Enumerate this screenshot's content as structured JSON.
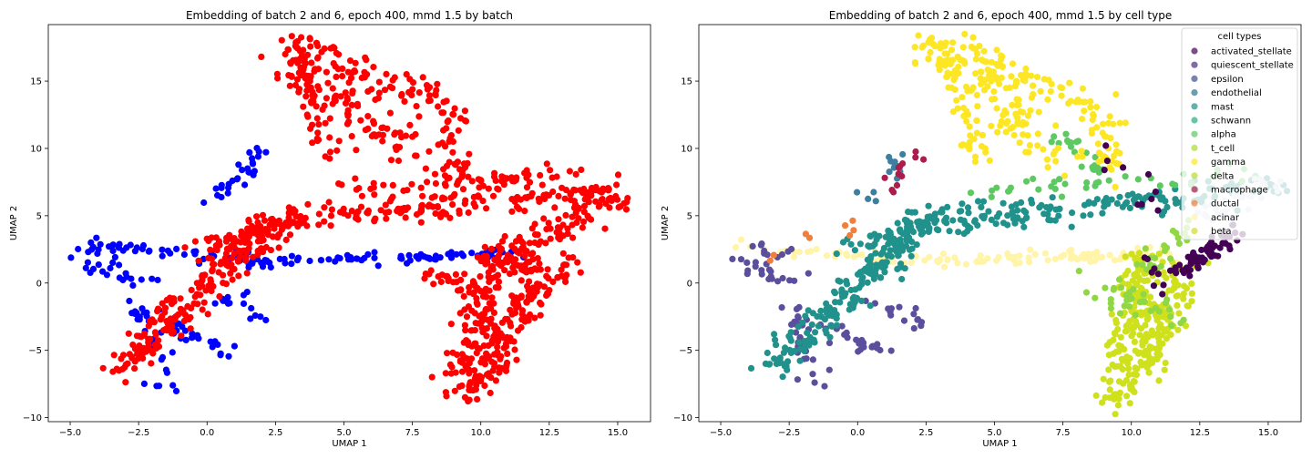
{
  "chart_data": [
    {
      "type": "scatter",
      "title": "Embedding of batch 2 and 6, epoch 400, mmd 1.5 by batch",
      "xlabel": "UMAP 1",
      "ylabel": "UMAP 2",
      "xlim": [
        -5.8,
        16.2
      ],
      "ylim": [
        -10.3,
        19.2
      ],
      "xticks": [
        "−5.0",
        "−2.5",
        "0.0",
        "2.5",
        "5.0",
        "7.5",
        "10.0",
        "12.5",
        "15.0"
      ],
      "xtick_values": [
        -5,
        -2.5,
        0,
        2.5,
        5,
        7.5,
        10,
        12.5,
        15
      ],
      "yticks": [
        "−10",
        "−5",
        "0",
        "5",
        "10",
        "15"
      ],
      "ytick_values": [
        -10,
        -5,
        0,
        5,
        10,
        15
      ],
      "grid": false,
      "series": [
        {
          "color": "#0000ff",
          "regions": [
            {
              "shape": "line",
              "from": [
                -4.5,
                2.8
              ],
              "to": [
                2.2,
                1.6
              ],
              "count": 60,
              "spread": 0.45
            },
            {
              "shape": "line",
              "from": [
                2.2,
                1.6
              ],
              "to": [
                11.5,
                2.2
              ],
              "count": 70,
              "spread": 0.35
            },
            {
              "shape": "line",
              "from": [
                -4.5,
                1.5
              ],
              "to": [
                -2.2,
                0.2
              ],
              "count": 20,
              "spread": 0.6
            },
            {
              "shape": "line",
              "from": [
                -2.5,
                -1.5
              ],
              "to": [
                -1.5,
                -7.8
              ],
              "count": 30,
              "spread": 0.5
            },
            {
              "shape": "line",
              "from": [
                -1.5,
                -3.0
              ],
              "to": [
                0.8,
                -5.2
              ],
              "count": 25,
              "spread": 0.5
            },
            {
              "shape": "line",
              "from": [
                0.2,
                6.0
              ],
              "to": [
                2.2,
                10.0
              ],
              "count": 28,
              "spread": 0.5
            },
            {
              "shape": "line",
              "from": [
                0.5,
                -1.0
              ],
              "to": [
                2.2,
                -2.8
              ],
              "count": 15,
              "spread": 0.5
            }
          ]
        },
        {
          "color": "#ff0000",
          "regions": [
            {
              "shape": "line",
              "from": [
                -3.3,
                -6.5
              ],
              "to": [
                2.5,
                4.5
              ],
              "count": 200,
              "spread": 0.7
            },
            {
              "shape": "line",
              "from": [
                0.0,
                2.5
              ],
              "to": [
                2.8,
                4.8
              ],
              "count": 50,
              "spread": 0.6
            },
            {
              "shape": "line",
              "from": [
                2.5,
                4.6
              ],
              "to": [
                15.0,
                7.0
              ],
              "count": 170,
              "spread": 0.9
            },
            {
              "shape": "line",
              "from": [
                4.5,
                7.0
              ],
              "to": [
                14.5,
                8.3
              ],
              "count": 60,
              "spread": 0.5
            },
            {
              "shape": "line",
              "from": [
                2.8,
                18.0
              ],
              "to": [
                7.5,
                9.0
              ],
              "count": 110,
              "spread": 1.1
            },
            {
              "shape": "line",
              "from": [
                3.5,
                17.5
              ],
              "to": [
                8.8,
                13.0
              ],
              "count": 70,
              "spread": 1.0
            },
            {
              "shape": "line",
              "from": [
                8.8,
                13.0
              ],
              "to": [
                9.3,
                7.2
              ],
              "count": 35,
              "spread": 0.6
            },
            {
              "shape": "line",
              "from": [
                3.0,
                17.8
              ],
              "to": [
                4.5,
                9.0
              ],
              "count": 50,
              "spread": 0.5
            },
            {
              "shape": "line",
              "from": [
                9.5,
                -8.7
              ],
              "to": [
                10.5,
                2.0
              ],
              "count": 170,
              "spread": 0.7
            },
            {
              "shape": "line",
              "from": [
                10.5,
                -7.0
              ],
              "to": [
                12.0,
                1.5
              ],
              "count": 100,
              "spread": 0.6
            },
            {
              "shape": "line",
              "from": [
                10.5,
                1.0
              ],
              "to": [
                14.8,
                6.5
              ],
              "count": 110,
              "spread": 0.8
            },
            {
              "shape": "line",
              "from": [
                12.2,
                -1.0
              ],
              "to": [
                13.5,
                2.2
              ],
              "count": 25,
              "spread": 0.4
            },
            {
              "shape": "line",
              "from": [
                8.2,
                0.8
              ],
              "to": [
                9.5,
                -0.5
              ],
              "count": 20,
              "spread": 0.4
            }
          ]
        }
      ]
    },
    {
      "type": "scatter",
      "title": "Embedding of batch 2 and 6, epoch 400, mmd 1.5 by cell type",
      "xlabel": "UMAP 1",
      "ylabel": "UMAP 2",
      "xlim": [
        -5.8,
        16.2
      ],
      "ylim": [
        -10.3,
        19.2
      ],
      "xticks": [
        "−5.0",
        "−2.5",
        "0.0",
        "2.5",
        "5.0",
        "7.5",
        "10.0",
        "12.5",
        "15.0"
      ],
      "xtick_values": [
        -5,
        -2.5,
        0,
        2.5,
        5,
        7.5,
        10,
        12.5,
        15
      ],
      "yticks": [
        "−10",
        "−5",
        "0",
        "5",
        "10",
        "15"
      ],
      "ytick_values": [
        -10,
        -5,
        0,
        5,
        10,
        15
      ],
      "grid": false,
      "legend": {
        "title": "cell types",
        "placement": "top-right",
        "entries": [
          {
            "name": "activated_stellate",
            "color": "#440154"
          },
          {
            "name": "quiescent_stellate",
            "color": "#472d7b"
          },
          {
            "name": "epsilon",
            "color": "#3b528b"
          },
          {
            "name": "endothelial",
            "color": "#2c728e"
          },
          {
            "name": "mast",
            "color": "#21918c"
          },
          {
            "name": "schwann",
            "color": "#28ae80"
          },
          {
            "name": "alpha",
            "color": "#5ec962"
          },
          {
            "name": "t_cell",
            "color": "#addc30"
          },
          {
            "name": "gamma",
            "color": "#fde725"
          },
          {
            "name": "delta",
            "color": "#b5de2b"
          },
          {
            "name": "macrophage",
            "color": "#ad1d4c"
          },
          {
            "name": "ductal",
            "color": "#f07f3c"
          },
          {
            "name": "acinar",
            "color": "#fff4a8"
          },
          {
            "name": "beta",
            "color": "#d2dc2a"
          }
        ]
      },
      "series": [
        {
          "name": "acinar",
          "color": "#fff4a8",
          "regions": [
            {
              "shape": "line",
              "from": [
                -4.5,
                2.8
              ],
              "to": [
                2.2,
                1.6
              ],
              "count": 40,
              "spread": 0.4
            },
            {
              "shape": "line",
              "from": [
                2.2,
                1.6
              ],
              "to": [
                11.5,
                2.2
              ],
              "count": 80,
              "spread": 0.4
            }
          ]
        },
        {
          "name": "quiescent_stellate",
          "color": "#5b4e9c",
          "regions": [
            {
              "shape": "line",
              "from": [
                -4.5,
                1.5
              ],
              "to": [
                -2.2,
                0.2
              ],
              "count": 20,
              "spread": 0.6
            },
            {
              "shape": "line",
              "from": [
                -2.5,
                -1.5
              ],
              "to": [
                -1.5,
                -7.8
              ],
              "count": 30,
              "spread": 0.5
            },
            {
              "shape": "line",
              "from": [
                -1.5,
                -3.0
              ],
              "to": [
                0.8,
                -5.2
              ],
              "count": 25,
              "spread": 0.5
            },
            {
              "shape": "line",
              "from": [
                0.5,
                -1.0
              ],
              "to": [
                2.2,
                -2.8
              ],
              "count": 15,
              "spread": 0.5
            },
            {
              "shape": "line",
              "from": [
                -3.8,
                2.6
              ],
              "to": [
                -2.3,
                2.0
              ],
              "count": 10,
              "spread": 0.4
            }
          ]
        },
        {
          "name": "endothelial",
          "color": "#3e7fa0",
          "regions": [
            {
              "shape": "line",
              "from": [
                0.2,
                6.0
              ],
              "to": [
                1.6,
                9.6
              ],
              "count": 14,
              "spread": 0.5
            }
          ]
        },
        {
          "name": "macrophage",
          "color": "#ad1d4c",
          "regions": [
            {
              "shape": "line",
              "from": [
                1.2,
                7.0
              ],
              "to": [
                2.2,
                10.0
              ],
              "count": 12,
              "spread": 0.5
            }
          ]
        },
        {
          "name": "mast",
          "color": "#21918c",
          "regions": [
            {
              "shape": "line",
              "from": [
                -3.3,
                -6.5
              ],
              "to": [
                2.5,
                4.5
              ],
              "count": 200,
              "spread": 0.7
            },
            {
              "shape": "line",
              "from": [
                0.0,
                2.5
              ],
              "to": [
                2.8,
                4.8
              ],
              "count": 50,
              "spread": 0.6
            },
            {
              "shape": "line",
              "from": [
                2.5,
                4.6
              ],
              "to": [
                15.0,
                7.0
              ],
              "count": 170,
              "spread": 0.9
            }
          ]
        },
        {
          "name": "alpha",
          "color": "#5ec962",
          "regions": [
            {
              "shape": "line",
              "from": [
                4.5,
                7.0
              ],
              "to": [
                14.5,
                8.3
              ],
              "count": 40,
              "spread": 0.7
            },
            {
              "shape": "line",
              "from": [
                7.5,
                11.0
              ],
              "to": [
                8.8,
                8.0
              ],
              "count": 20,
              "spread": 0.6
            }
          ]
        },
        {
          "name": "gamma",
          "color": "#fde725",
          "regions": [
            {
              "shape": "line",
              "from": [
                2.8,
                18.0
              ],
              "to": [
                7.5,
                9.0
              ],
              "count": 110,
              "spread": 1.1
            },
            {
              "shape": "line",
              "from": [
                3.5,
                17.5
              ],
              "to": [
                8.8,
                13.0
              ],
              "count": 70,
              "spread": 1.0
            },
            {
              "shape": "line",
              "from": [
                8.8,
                13.0
              ],
              "to": [
                9.3,
                7.2
              ],
              "count": 35,
              "spread": 0.6
            },
            {
              "shape": "line",
              "from": [
                3.0,
                17.8
              ],
              "to": [
                4.5,
                9.0
              ],
              "count": 50,
              "spread": 0.5
            }
          ]
        },
        {
          "name": "beta",
          "color": "#cfe11d",
          "regions": [
            {
              "shape": "line",
              "from": [
                9.5,
                -8.7
              ],
              "to": [
                10.5,
                2.0
              ],
              "count": 170,
              "spread": 0.7
            },
            {
              "shape": "line",
              "from": [
                10.5,
                -7.0
              ],
              "to": [
                12.0,
                1.5
              ],
              "count": 100,
              "spread": 0.6
            }
          ]
        },
        {
          "name": "delta",
          "color": "#8fd744",
          "regions": [
            {
              "shape": "line",
              "from": [
                8.5,
                0.0
              ],
              "to": [
                11.5,
                -2.5
              ],
              "count": 35,
              "spread": 0.8
            },
            {
              "shape": "line",
              "from": [
                10.5,
                1.0
              ],
              "to": [
                12.0,
                4.5
              ],
              "count": 25,
              "spread": 0.6
            }
          ]
        },
        {
          "name": "activated_stellate",
          "color": "#440154",
          "regions": [
            {
              "shape": "line",
              "from": [
                11.5,
                0.5
              ],
              "to": [
                14.0,
                4.0
              ],
              "count": 60,
              "spread": 0.5
            },
            {
              "shape": "line",
              "from": [
                8.8,
                10.5
              ],
              "to": [
                11.0,
                5.0
              ],
              "count": 10,
              "spread": 0.6
            },
            {
              "shape": "line",
              "from": [
                10.5,
                2.0
              ],
              "to": [
                11.0,
                -1.0
              ],
              "count": 8,
              "spread": 0.4
            }
          ]
        },
        {
          "name": "schwann",
          "color": "#d3dbe8",
          "regions": [
            {
              "shape": "line",
              "from": [
                12.5,
                4.5
              ],
              "to": [
                15.0,
                7.5
              ],
              "count": 40,
              "spread": 0.6
            }
          ]
        },
        {
          "name": "ductal",
          "color": "#f07f3c",
          "regions": [
            {
              "shape": "line",
              "from": [
                -4.5,
                0.5
              ],
              "to": [
                2.5,
                7.0
              ],
              "count": 8,
              "spread": 0.6
            }
          ]
        }
      ]
    }
  ]
}
